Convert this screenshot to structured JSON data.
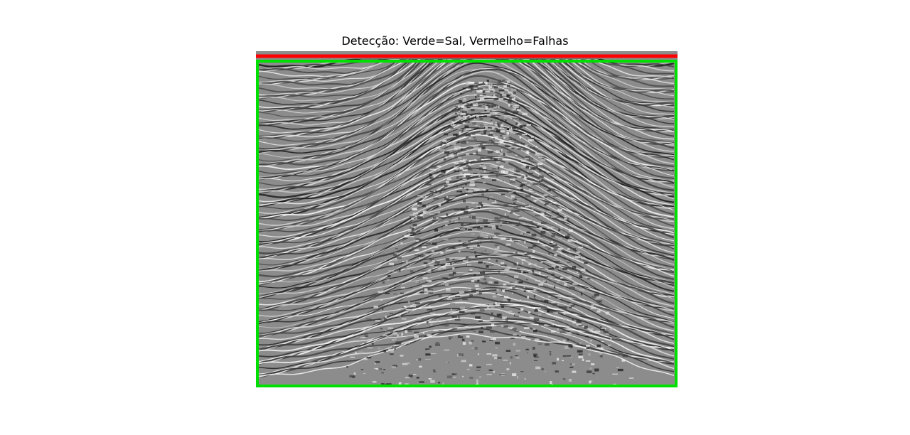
{
  "title": "Detecção: Verde=Sal, Vermelho=Falhas",
  "image": {
    "kind": "seismic-section",
    "colormap": "grayscale",
    "overlays": [
      {
        "name": "fault-detection-line",
        "color": "#ff0000"
      },
      {
        "name": "salt-detection-boundary",
        "color": "#00e000"
      }
    ]
  }
}
